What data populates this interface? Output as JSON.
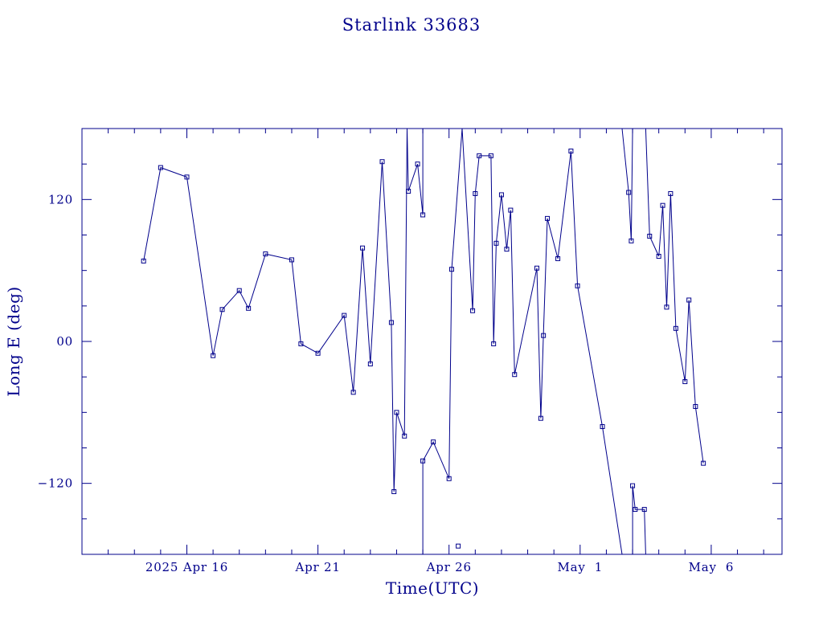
{
  "chart_data": {
    "type": "line",
    "title": "Starlink 33683",
    "xlabel": "Time(UTC)",
    "ylabel": "Long E (deg)",
    "xlim": [
      -4.0,
      22.7
    ],
    "ylim": [
      -180,
      180
    ],
    "x_tick_labels": [
      {
        "x": 0,
        "label": "2025 Apr 16"
      },
      {
        "x": 5,
        "label": "Apr 21"
      },
      {
        "x": 10,
        "label": "Apr 26"
      },
      {
        "x": 15,
        "label": "May  1"
      },
      {
        "x": 20,
        "label": "May  6"
      }
    ],
    "y_tick_labels": [
      {
        "y": 120,
        "label": "120"
      },
      {
        "y": 0,
        "label": "00"
      },
      {
        "y": -120,
        "label": "−120"
      }
    ],
    "grid": false,
    "color": "#00008b",
    "series": [
      {
        "segments": [
          [
            [
              -1.65,
              68
            ],
            [
              -1.0,
              147
            ],
            [
              0.0,
              139
            ],
            [
              1.0,
              -12
            ],
            [
              1.35,
              27
            ],
            [
              2.0,
              43
            ],
            [
              2.35,
              28
            ],
            [
              3.0,
              74
            ],
            [
              4.0,
              69
            ],
            [
              4.35,
              -2
            ],
            [
              5.0,
              -10
            ],
            [
              6.0,
              22
            ],
            [
              6.35,
              -43
            ],
            [
              6.7,
              79
            ],
            [
              7.0,
              -19
            ],
            [
              7.45,
              152
            ],
            [
              7.8,
              16
            ],
            [
              7.9,
              -127
            ],
            [
              8.0,
              -60
            ],
            [
              8.3,
              -80
            ],
            [
              8.4,
              180
            ]
          ],
          [
            [
              8.4,
              180
            ],
            [
              8.45,
              127
            ],
            [
              8.8,
              150
            ],
            [
              9.0,
              107
            ],
            [
              9.0,
              180
            ]
          ],
          [
            [
              9.0,
              -180
            ],
            [
              9.0,
              -101
            ],
            [
              9.4,
              -85
            ],
            [
              10.0,
              -116
            ],
            [
              10.1,
              61
            ],
            [
              10.5,
              180
            ]
          ],
          [
            [
              10.5,
              180
            ],
            [
              10.9,
              26
            ],
            [
              11.0,
              125
            ],
            [
              11.15,
              157
            ],
            [
              11.6,
              157
            ],
            [
              11.7,
              -2
            ],
            [
              11.8,
              83
            ],
            [
              12.0,
              124
            ],
            [
              12.2,
              78
            ],
            [
              12.35,
              111
            ],
            [
              12.5,
              -28
            ],
            [
              13.35,
              62
            ],
            [
              13.5,
              -65
            ],
            [
              13.6,
              5
            ],
            [
              13.75,
              104
            ],
            [
              14.15,
              70
            ],
            [
              14.65,
              161
            ],
            [
              14.9,
              47
            ],
            [
              15.85,
              -72
            ],
            [
              16.6,
              -180
            ]
          ],
          [
            [
              16.6,
              180
            ],
            [
              16.85,
              126
            ],
            [
              16.95,
              85
            ],
            [
              17.0,
              180
            ]
          ],
          [
            [
              17.0,
              -180
            ],
            [
              17.0,
              -122
            ],
            [
              17.1,
              -142
            ],
            [
              17.45,
              -142
            ],
            [
              17.5,
              -180
            ]
          ],
          [
            [
              17.5,
              180
            ],
            [
              17.65,
              89
            ],
            [
              18.0,
              72
            ],
            [
              18.15,
              115
            ],
            [
              18.3,
              29
            ],
            [
              18.45,
              125
            ],
            [
              18.65,
              11
            ],
            [
              19.0,
              -34
            ],
            [
              19.15,
              35
            ],
            [
              19.4,
              -55
            ],
            [
              19.7,
              -103
            ]
          ]
        ],
        "markers": [
          [
            -1.65,
            68
          ],
          [
            -1.0,
            147
          ],
          [
            0.0,
            139
          ],
          [
            1.0,
            -12
          ],
          [
            1.35,
            27
          ],
          [
            2.0,
            43
          ],
          [
            2.35,
            28
          ],
          [
            3.0,
            74
          ],
          [
            4.0,
            69
          ],
          [
            4.35,
            -2
          ],
          [
            5.0,
            -10
          ],
          [
            6.0,
            22
          ],
          [
            6.35,
            -43
          ],
          [
            6.7,
            79
          ],
          [
            7.0,
            -19
          ],
          [
            7.45,
            152
          ],
          [
            7.8,
            16
          ],
          [
            7.9,
            -127
          ],
          [
            8.0,
            -60
          ],
          [
            8.3,
            -80
          ],
          [
            8.45,
            127
          ],
          [
            8.8,
            150
          ],
          [
            9.0,
            107
          ],
          [
            9.0,
            -101
          ],
          [
            9.4,
            -85
          ],
          [
            10.0,
            -116
          ],
          [
            10.1,
            61
          ],
          [
            10.35,
            -173
          ],
          [
            10.9,
            26
          ],
          [
            11.0,
            125
          ],
          [
            11.15,
            157
          ],
          [
            11.6,
            157
          ],
          [
            11.7,
            -2
          ],
          [
            11.8,
            83
          ],
          [
            12.0,
            124
          ],
          [
            12.2,
            78
          ],
          [
            12.35,
            111
          ],
          [
            12.5,
            -28
          ],
          [
            13.35,
            62
          ],
          [
            13.5,
            -65
          ],
          [
            13.6,
            5
          ],
          [
            13.75,
            104
          ],
          [
            14.15,
            70
          ],
          [
            14.65,
            161
          ],
          [
            14.9,
            47
          ],
          [
            15.85,
            -72
          ],
          [
            16.85,
            126
          ],
          [
            16.95,
            85
          ],
          [
            17.0,
            -122
          ],
          [
            17.1,
            -142
          ],
          [
            17.45,
            -142
          ],
          [
            17.65,
            89
          ],
          [
            18.0,
            72
          ],
          [
            18.15,
            115
          ],
          [
            18.3,
            29
          ],
          [
            18.45,
            125
          ],
          [
            18.65,
            11
          ],
          [
            19.0,
            -34
          ],
          [
            19.15,
            35
          ],
          [
            19.4,
            -55
          ],
          [
            19.7,
            -103
          ]
        ]
      }
    ]
  }
}
